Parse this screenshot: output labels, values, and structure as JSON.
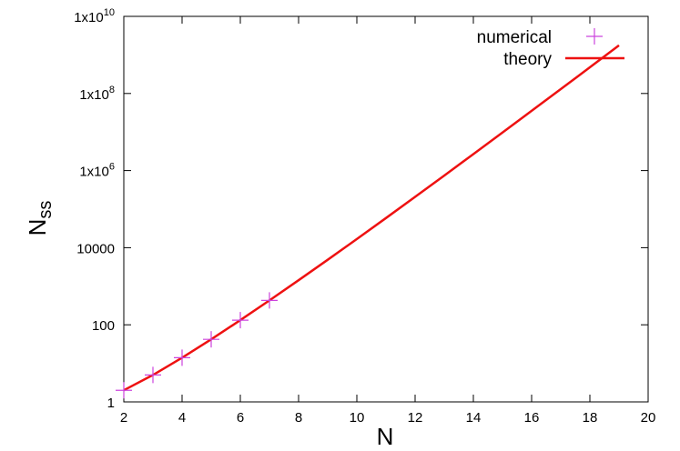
{
  "chart_data": {
    "type": "scatter",
    "xlabel": "N",
    "ylabel_main": "N",
    "ylabel_sub": "ss",
    "xlim": [
      2,
      20
    ],
    "ylim": [
      1,
      10000000000
    ],
    "yscale": "log",
    "grid": false,
    "legend": "top-right",
    "x_ticks": [
      2,
      4,
      6,
      8,
      10,
      12,
      14,
      16,
      18,
      20
    ],
    "y_ticks": [
      {
        "value": 1,
        "label": "1",
        "base": "1",
        "exp": ""
      },
      {
        "value": 100,
        "label": "100",
        "base": "100",
        "exp": ""
      },
      {
        "value": 10000,
        "label": "10000",
        "base": "10000",
        "exp": ""
      },
      {
        "value": 1000000,
        "label": "1x10^6",
        "base": "1x10",
        "exp": "6"
      },
      {
        "value": 100000000,
        "label": "1x10^8",
        "base": "1x10",
        "exp": "8"
      },
      {
        "value": 10000000000,
        "label": "1x10^10",
        "base": "1x10",
        "exp": "10"
      }
    ],
    "series": [
      {
        "name": "numerical",
        "kind": "points",
        "marker": "+",
        "color": "#cc44dd",
        "x": [
          2,
          3,
          4,
          5,
          6,
          7
        ],
        "y": [
          2,
          5,
          14,
          42,
          132,
          429
        ]
      },
      {
        "name": "theory",
        "kind": "line",
        "color": "#ee1111",
        "x": [
          2,
          3,
          4,
          5,
          6,
          7,
          8,
          9,
          10,
          11,
          12,
          13,
          14,
          15,
          16,
          17,
          18,
          19
        ],
        "y": [
          2,
          5,
          14,
          42,
          132,
          429,
          1430,
          4862,
          16796,
          58786,
          208012,
          742900,
          2674440,
          9694845,
          35357670,
          129644790,
          477638700,
          1767263190
        ]
      }
    ]
  }
}
